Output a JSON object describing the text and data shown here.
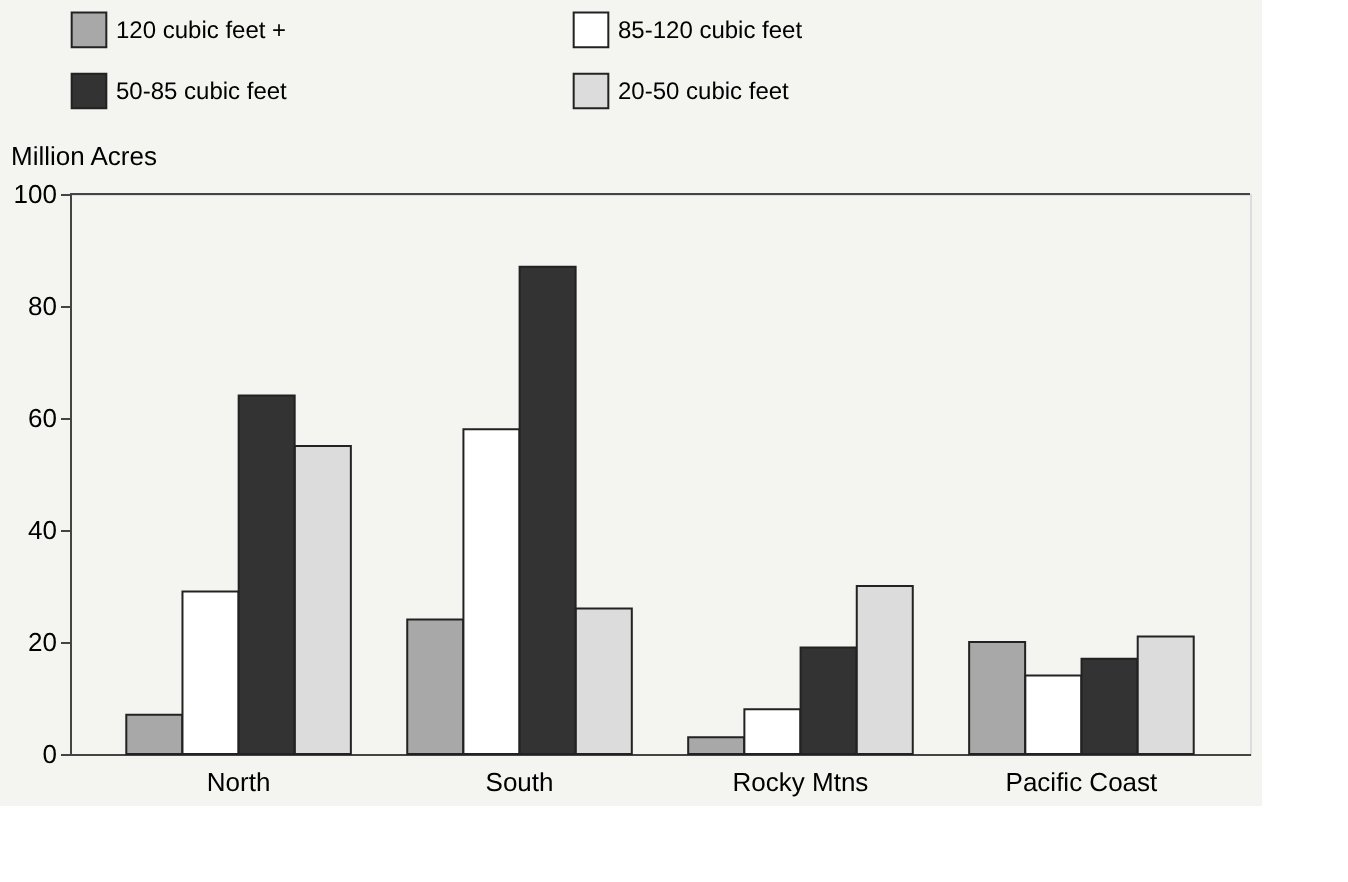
{
  "chart_data": {
    "type": "bar",
    "ylabel": "Million Acres",
    "categories": [
      "North",
      "South",
      "Rocky Mtns",
      "Pacific Coast"
    ],
    "series": [
      {
        "name": "120 cubic feet +",
        "color": "#a8a8a8",
        "values": [
          7,
          24,
          3,
          20
        ]
      },
      {
        "name": "85-120 cubic feet",
        "color": "#ffffff",
        "values": [
          29,
          58,
          8,
          14
        ]
      },
      {
        "name": "50-85 cubic feet",
        "color": "#333333",
        "values": [
          64,
          87,
          19,
          17
        ]
      },
      {
        "name": "20-50 cubic feet",
        "color": "#dcdcdc",
        "values": [
          55,
          26,
          30,
          21
        ]
      }
    ],
    "ylim": [
      0,
      100
    ],
    "yticks": [
      0,
      20,
      40,
      60,
      80,
      100
    ],
    "grid": false,
    "legend": "top"
  }
}
